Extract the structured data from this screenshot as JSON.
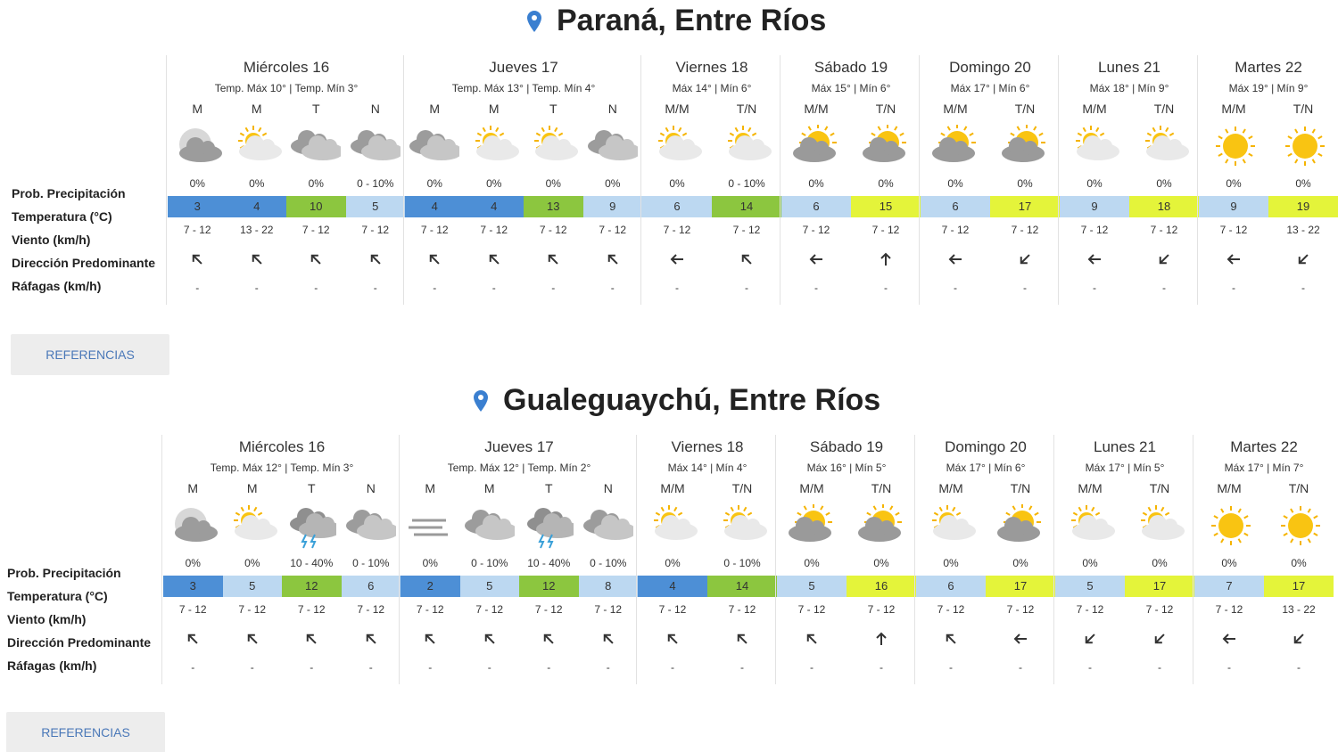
{
  "sections": [
    {
      "title": "Paraná, Entre Ríos",
      "row_labels": [
        "Prob. Precipitación",
        "Temperatura (°C)",
        "Viento (km/h)",
        "Dirección Predominante",
        "Ráfagas (km/h)"
      ],
      "button": "REFERENCIAS",
      "days": [
        {
          "name": "Miércoles 16",
          "temps": "Temp. Máx 10° | Temp. Mín 3°",
          "periods": [
            {
              "label": "M",
              "precip": "0%",
              "temp": 3,
              "wind": "7 - 12",
              "gust": "-"
            },
            {
              "label": "M",
              "precip": "0%",
              "temp": 4,
              "wind": "13 - 22",
              "gust": "-"
            },
            {
              "label": "T",
              "precip": "0%",
              "temp": 10,
              "wind": "7 - 12",
              "gust": "-"
            },
            {
              "label": "N",
              "precip": "0 - 10%",
              "temp": 5,
              "wind": "7 - 12",
              "gust": "-"
            }
          ]
        },
        {
          "name": "Jueves 17",
          "temps": "Temp. Máx 13° | Temp. Mín 4°",
          "periods": [
            {
              "label": "M",
              "precip": "0%",
              "temp": 4,
              "wind": "7 - 12",
              "gust": "-"
            },
            {
              "label": "M",
              "precip": "0%",
              "temp": 4,
              "wind": "7 - 12",
              "gust": "-"
            },
            {
              "label": "T",
              "precip": "0%",
              "temp": 13,
              "wind": "7 - 12",
              "gust": "-"
            },
            {
              "label": "N",
              "precip": "0%",
              "temp": 9,
              "wind": "7 - 12",
              "gust": "-"
            }
          ]
        },
        {
          "name": "Viernes 18",
          "temps": "Máx 14° | Mín 6°",
          "periods": [
            {
              "label": "M/M",
              "precip": "0%",
              "temp": 6,
              "wind": "7 - 12",
              "gust": "-"
            },
            {
              "label": "T/N",
              "precip": "0 - 10%",
              "temp": 14,
              "wind": "7 - 12",
              "gust": "-"
            }
          ]
        },
        {
          "name": "Sábado 19",
          "temps": "Máx 15° | Mín 6°",
          "periods": [
            {
              "label": "M/M",
              "precip": "0%",
              "temp": 6,
              "wind": "7 - 12",
              "gust": "-"
            },
            {
              "label": "T/N",
              "precip": "0%",
              "temp": 15,
              "wind": "7 - 12",
              "gust": "-"
            }
          ]
        },
        {
          "name": "Domingo 20",
          "temps": "Máx 17° | Mín 6°",
          "periods": [
            {
              "label": "M/M",
              "precip": "0%",
              "temp": 6,
              "wind": "7 - 12",
              "gust": "-"
            },
            {
              "label": "T/N",
              "precip": "0%",
              "temp": 17,
              "wind": "7 - 12",
              "gust": "-"
            }
          ]
        },
        {
          "name": "Lunes 21",
          "temps": "Máx 18° | Mín 9°",
          "periods": [
            {
              "label": "M/M",
              "precip": "0%",
              "temp": 9,
              "wind": "7 - 12",
              "gust": "-"
            },
            {
              "label": "T/N",
              "precip": "0%",
              "temp": 18,
              "wind": "7 - 12",
              "gust": "-"
            }
          ]
        },
        {
          "name": "Martes 22",
          "temps": "Máx 19° | Mín 9°",
          "periods": [
            {
              "label": "M/M",
              "precip": "0%",
              "temp": 9,
              "wind": "7 - 12",
              "gust": "-"
            },
            {
              "label": "T/N",
              "precip": "0%",
              "temp": 19,
              "wind": "13 - 22",
              "gust": "-"
            }
          ]
        }
      ]
    },
    {
      "title": "Gualeguaychú, Entre Ríos",
      "row_labels": [
        "Prob. Precipitación",
        "Temperatura (°C)",
        "Viento (km/h)",
        "Dirección Predominante",
        "Ráfagas (km/h)"
      ],
      "button": "REFERENCIAS",
      "days": [
        {
          "name": "Miércoles 16",
          "temps": "Temp. Máx 12° | Temp. Mín 3°",
          "periods": [
            {
              "label": "M",
              "precip": "0%",
              "temp": 3,
              "wind": "7 - 12",
              "gust": "-"
            },
            {
              "label": "M",
              "precip": "0%",
              "temp": 5,
              "wind": "7 - 12",
              "gust": "-"
            },
            {
              "label": "T",
              "precip": "10 - 40%",
              "temp": 12,
              "wind": "7 - 12",
              "gust": "-"
            },
            {
              "label": "N",
              "precip": "0 - 10%",
              "temp": 6,
              "wind": "7 - 12",
              "gust": "-"
            }
          ]
        },
        {
          "name": "Jueves 17",
          "temps": "Temp. Máx 12° | Temp. Mín 2°",
          "periods": [
            {
              "label": "M",
              "precip": "0%",
              "temp": 2,
              "wind": "7 - 12",
              "gust": "-"
            },
            {
              "label": "M",
              "precip": "0 - 10%",
              "temp": 5,
              "wind": "7 - 12",
              "gust": "-"
            },
            {
              "label": "T",
              "precip": "10 - 40%",
              "temp": 12,
              "wind": "7 - 12",
              "gust": "-"
            },
            {
              "label": "N",
              "precip": "0 - 10%",
              "temp": 8,
              "wind": "7 - 12",
              "gust": "-"
            }
          ]
        },
        {
          "name": "Viernes 18",
          "temps": "Máx 14° | Mín 4°",
          "periods": [
            {
              "label": "M/M",
              "precip": "0%",
              "temp": 4,
              "wind": "7 - 12",
              "gust": "-"
            },
            {
              "label": "T/N",
              "precip": "0 - 10%",
              "temp": 14,
              "wind": "7 - 12",
              "gust": "-"
            }
          ]
        },
        {
          "name": "Sábado 19",
          "temps": "Máx 16° | Mín 5°",
          "periods": [
            {
              "label": "M/M",
              "precip": "0%",
              "temp": 5,
              "wind": "7 - 12",
              "gust": "-"
            },
            {
              "label": "T/N",
              "precip": "0%",
              "temp": 16,
              "wind": "7 - 12",
              "gust": "-"
            }
          ]
        },
        {
          "name": "Domingo 20",
          "temps": "Máx 17° | Mín 6°",
          "periods": [
            {
              "label": "M/M",
              "precip": "0%",
              "temp": 6,
              "wind": "7 - 12",
              "gust": "-"
            },
            {
              "label": "T/N",
              "precip": "0%",
              "temp": 17,
              "wind": "7 - 12",
              "gust": "-"
            }
          ]
        },
        {
          "name": "Lunes 21",
          "temps": "Máx 17° | Mín 5°",
          "periods": [
            {
              "label": "M/M",
              "precip": "0%",
              "temp": 5,
              "wind": "7 - 12",
              "gust": "-"
            },
            {
              "label": "T/N",
              "precip": "0%",
              "temp": 17,
              "wind": "7 - 12",
              "gust": "-"
            }
          ]
        },
        {
          "name": "Martes 22",
          "temps": "Máx 17° | Mín 7°",
          "periods": [
            {
              "label": "M/M",
              "precip": "0%",
              "temp": 7,
              "wind": "7 - 12",
              "gust": "-"
            },
            {
              "label": "T/N",
              "precip": "0%",
              "temp": 17,
              "wind": "13 - 22",
              "gust": "-"
            }
          ]
        }
      ]
    }
  ]
}
